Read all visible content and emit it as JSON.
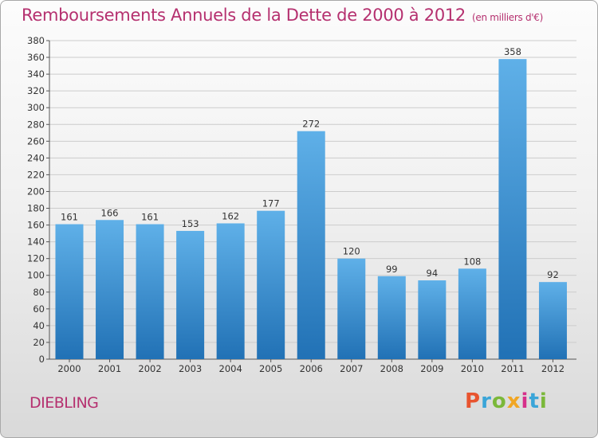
{
  "header": {
    "title": "Remboursements Annuels de la Dette de 2000 à 2012",
    "unit": "(en milliers d'€)"
  },
  "footer": {
    "city": "DIEBLING",
    "logo_text": "Proxiti",
    "logo_colors": [
      "#e8542f",
      "#3aa5d8",
      "#7bb83a",
      "#f1a623",
      "#d6308a",
      "#3aa5d8",
      "#7bb83a"
    ]
  },
  "colors": {
    "title": "#b5306f",
    "bar_top": "#5fb0e8",
    "bar_bottom": "#2171b5"
  },
  "chart_data": {
    "type": "bar",
    "categories": [
      "2000",
      "2001",
      "2002",
      "2003",
      "2004",
      "2005",
      "2006",
      "2007",
      "2008",
      "2009",
      "2010",
      "2011",
      "2012"
    ],
    "values": [
      161,
      166,
      161,
      153,
      162,
      177,
      272,
      120,
      99,
      94,
      108,
      358,
      92
    ],
    "ylim": [
      0,
      380
    ],
    "ytick_step": 20,
    "grid": true,
    "legend": "none",
    "xlabel": "",
    "ylabel": ""
  }
}
